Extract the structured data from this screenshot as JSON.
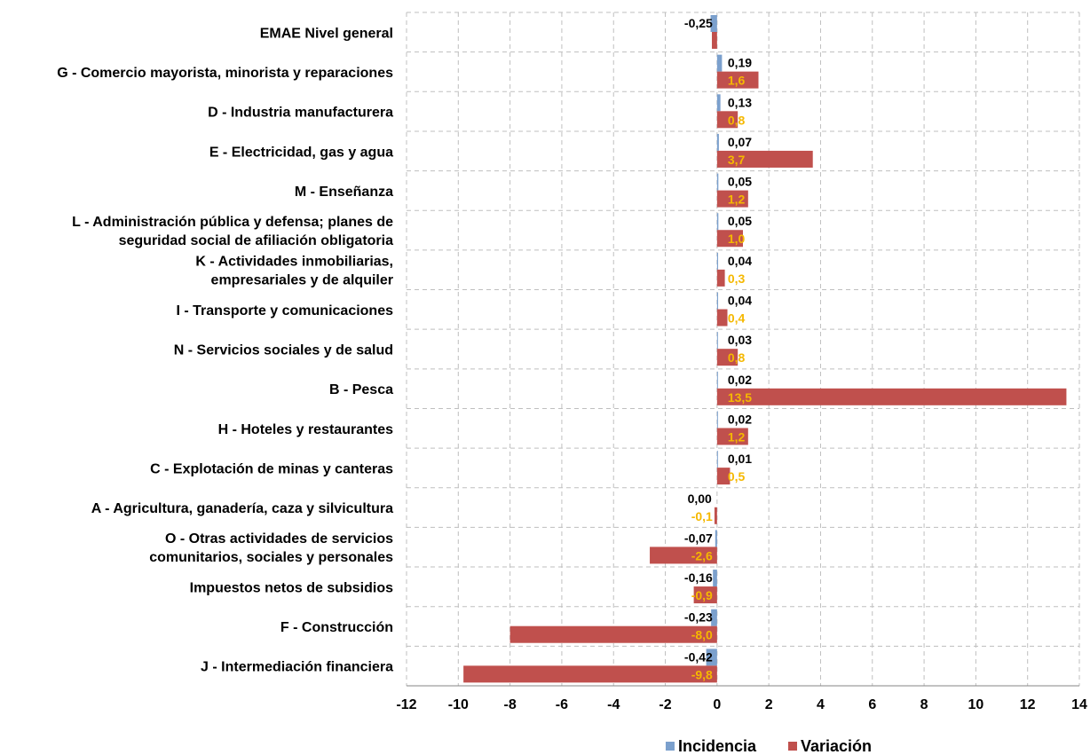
{
  "chart_data": {
    "type": "bar",
    "orientation": "horizontal",
    "categories": [
      [
        "EMAE Nivel general"
      ],
      [
        "G - Comercio mayorista, minorista y reparaciones"
      ],
      [
        "D - Industria manufacturera"
      ],
      [
        "E - Electricidad, gas y agua"
      ],
      [
        "M - Enseñanza"
      ],
      [
        "L - Administración pública y defensa; planes de",
        "seguridad social de afiliación obligatoria"
      ],
      [
        "K - Actividades inmobiliarias,",
        "empresariales y de alquiler"
      ],
      [
        "I - Transporte y comunicaciones"
      ],
      [
        "N - Servicios sociales y de salud"
      ],
      [
        "B - Pesca"
      ],
      [
        "H - Hoteles y restaurantes"
      ],
      [
        "C - Explotación de minas y canteras"
      ],
      [
        "A -  Agricultura, ganadería, caza y silvicultura"
      ],
      [
        "O - Otras actividades de servicios",
        "comunitarios, sociales y personales"
      ],
      [
        "Impuestos netos de subsidios"
      ],
      [
        "F - Construcción"
      ],
      [
        "J - Intermediación financiera"
      ]
    ],
    "series": [
      {
        "name": "Incidencia",
        "color": "#7ba0cd",
        "label_color": "#000000",
        "values": [
          -0.25,
          0.19,
          0.13,
          0.07,
          0.05,
          0.05,
          0.04,
          0.04,
          0.03,
          0.02,
          0.02,
          0.01,
          0.0,
          -0.07,
          -0.16,
          -0.23,
          -0.42
        ],
        "labels": [
          "-0,25",
          "0,19",
          "0,13",
          "0,07",
          "0,05",
          "0,05",
          "0,04",
          "0,04",
          "0,03",
          "0,02",
          "0,02",
          "0,01",
          "0,00",
          "-0,07",
          "-0,16",
          "-0,23",
          "-0,42"
        ]
      },
      {
        "name": "Variación",
        "color": "#c0504d",
        "label_color": "#f5b800",
        "values": [
          -0.2,
          1.6,
          0.8,
          3.7,
          1.2,
          1.0,
          0.3,
          0.4,
          0.8,
          13.5,
          1.2,
          0.5,
          -0.1,
          -2.6,
          -0.9,
          -8.0,
          -9.8
        ],
        "labels": [
          "",
          "1,6",
          "0,8",
          "3,7",
          "1,2",
          "1,0",
          "0,3",
          "0,4",
          "0,8",
          "13,5",
          "1,2",
          "0,5",
          "-0,1",
          "-2,6",
          "-0,9",
          "-8,0",
          "-9,8"
        ]
      }
    ],
    "xlim": [
      -12,
      14
    ],
    "xticks": [
      -12,
      -10,
      -8,
      -6,
      -4,
      -2,
      0,
      2,
      4,
      6,
      8,
      10,
      12,
      14
    ],
    "grid": true,
    "legend_position": "bottom"
  }
}
